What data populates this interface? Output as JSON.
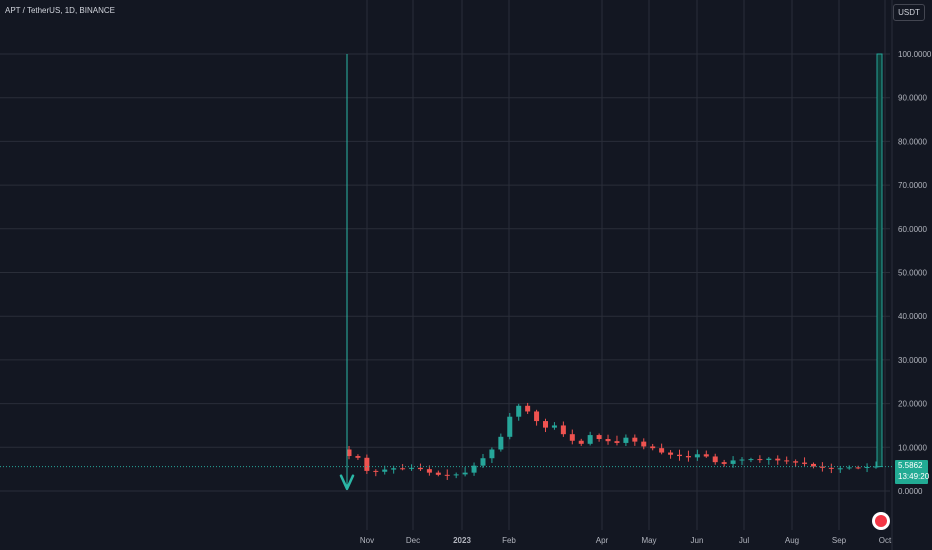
{
  "header": {
    "title": "APT / TetherUS, 1D, BINANCE",
    "unit_button": "USDT"
  },
  "price_tag": {
    "price": "5.5862",
    "countdown": "13:49:20"
  },
  "colors": {
    "up": "#26a69a",
    "down": "#ef5350",
    "background": "#131722",
    "grid": "#2a2e39",
    "annotation": "#2bb7a6"
  },
  "chart_data": {
    "type": "candlestick",
    "title": "APT / TetherUS, 1D, BINANCE",
    "ylim": [
      -10,
      106
    ],
    "y_ticks": [
      0,
      10,
      20,
      30,
      40,
      50,
      60,
      70,
      80,
      90,
      100
    ],
    "y_tick_labels": [
      "0.0000",
      "10.0000",
      "20.0000",
      "30.0000",
      "40.0000",
      "50.0000",
      "60.0000",
      "70.0000",
      "80.0000",
      "90.0000",
      "100.0000"
    ],
    "x_tick_labels": [
      "Nov",
      "Dec",
      "2023",
      "Feb",
      "Apr",
      "May",
      "Jun",
      "Jul",
      "Aug",
      "Sep",
      "Oct"
    ],
    "last_price": 5.5862,
    "grid": true,
    "annotations": [
      {
        "type": "vertical-line-arrow-down",
        "from": 100,
        "to": 1
      },
      {
        "type": "spike-bar",
        "to": 100
      }
    ],
    "price_path": [
      [
        9.5,
        8.0
      ],
      [
        8.0,
        7.6
      ],
      [
        7.6,
        4.6
      ],
      [
        4.6,
        4.4
      ],
      [
        4.4,
        4.9
      ],
      [
        4.9,
        5.2
      ],
      [
        5.2,
        5.1
      ],
      [
        5.1,
        5.3
      ],
      [
        5.3,
        5.0
      ],
      [
        5.0,
        4.2
      ],
      [
        4.2,
        3.7
      ],
      [
        3.7,
        3.6
      ],
      [
        3.6,
        3.8
      ],
      [
        3.8,
        4.2
      ],
      [
        4.2,
        5.8
      ],
      [
        5.8,
        7.5
      ],
      [
        7.5,
        9.5
      ],
      [
        9.5,
        12.4
      ],
      [
        12.4,
        17.0
      ],
      [
        17.0,
        19.5
      ],
      [
        19.5,
        18.2
      ],
      [
        18.2,
        16.0
      ],
      [
        16.0,
        14.5
      ],
      [
        14.5,
        15.0
      ],
      [
        15.0,
        13.0
      ],
      [
        13.0,
        11.5
      ],
      [
        11.5,
        10.8
      ],
      [
        10.8,
        12.8
      ],
      [
        12.8,
        11.9
      ],
      [
        11.9,
        11.4
      ],
      [
        11.4,
        11.0
      ],
      [
        11.0,
        12.2
      ],
      [
        12.2,
        11.3
      ],
      [
        11.3,
        10.2
      ],
      [
        10.2,
        9.8
      ],
      [
        9.8,
        8.8
      ],
      [
        8.8,
        8.3
      ],
      [
        8.3,
        8.0
      ],
      [
        8.0,
        7.7
      ],
      [
        7.7,
        8.4
      ],
      [
        8.4,
        7.9
      ],
      [
        7.9,
        6.6
      ],
      [
        6.6,
        6.2
      ],
      [
        6.2,
        7.0
      ],
      [
        7.0,
        7.2
      ],
      [
        7.2,
        7.3
      ],
      [
        7.3,
        7.1
      ],
      [
        7.1,
        7.4
      ],
      [
        7.4,
        7.0
      ],
      [
        7.0,
        6.8
      ],
      [
        6.8,
        6.5
      ],
      [
        6.5,
        6.2
      ],
      [
        6.2,
        5.6
      ],
      [
        5.6,
        5.3
      ],
      [
        5.3,
        5.1
      ],
      [
        5.1,
        5.2
      ],
      [
        5.2,
        5.4
      ],
      [
        5.4,
        5.3
      ],
      [
        5.3,
        5.5
      ],
      [
        5.5,
        5.6
      ]
    ]
  }
}
